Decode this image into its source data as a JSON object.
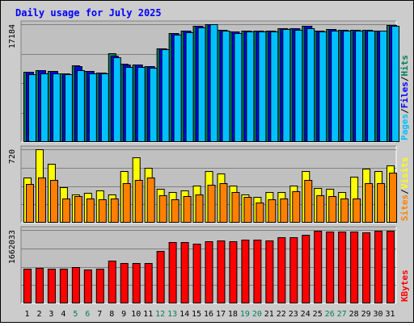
{
  "chart_data": {
    "type": "bar",
    "title": "Daily usage for July 2025",
    "categories": [
      "1",
      "2",
      "3",
      "4",
      "5",
      "6",
      "7",
      "8",
      "9",
      "10",
      "11",
      "12",
      "13",
      "14",
      "15",
      "16",
      "17",
      "18",
      "19",
      "20",
      "21",
      "22",
      "23",
      "24",
      "25",
      "26",
      "27",
      "28",
      "29",
      "30",
      "31"
    ],
    "weekend_days": [
      "5",
      "6",
      "12",
      "13",
      "19",
      "20",
      "26",
      "27"
    ],
    "panels": [
      {
        "id": "pfh",
        "ymax_label": "17184",
        "ylim": [
          0,
          17184
        ],
        "label_parts": [
          "Pages",
          "/",
          "Files",
          "/",
          "Hits"
        ],
        "series": [
          {
            "name": "Hits",
            "color": "#00805c",
            "values": [
              10200,
              10500,
              10300,
              10000,
              11200,
              10400,
              10100,
              12900,
              11400,
              11300,
              11100,
              13700,
              15900,
              16200,
              16900,
              17184,
              16400,
              16100,
              16300,
              16300,
              16300,
              16600,
              16600,
              16900,
              16300,
              16500,
              16400,
              16400,
              16400,
              16300,
              17100
            ]
          },
          {
            "name": "Files",
            "color": "#0000ff",
            "values": [
              10200,
              10500,
              10300,
              10000,
              11100,
              10400,
              10100,
              12600,
              11300,
              11300,
              11100,
              13700,
              15900,
              16200,
              16900,
              17184,
              16400,
              16100,
              16300,
              16300,
              16300,
              16600,
              16600,
              16900,
              16300,
              16500,
              16400,
              16400,
              16400,
              16300,
              17100
            ]
          },
          {
            "name": "Pages",
            "color": "#00c0ff",
            "values": [
              9900,
              10000,
              10000,
              9900,
              10500,
              10000,
              10000,
              12400,
              11000,
              11000,
              10800,
              13500,
              15700,
              16000,
              16700,
              17184,
              16200,
              15900,
              16100,
              16100,
              16100,
              16500,
              16400,
              16600,
              16100,
              16300,
              16200,
              16300,
              16300,
              16200,
              17000
            ]
          }
        ]
      },
      {
        "id": "sv",
        "ymax_label": "720",
        "ylim": [
          0,
          720
        ],
        "label_parts": [
          "Sites",
          "/",
          "Visits"
        ],
        "series": [
          {
            "name": "Visits",
            "color": "#ffff00",
            "values": [
              440,
              720,
              580,
              350,
              280,
              290,
              320,
              280,
              510,
              640,
              540,
              330,
              300,
              320,
              360,
              510,
              480,
              360,
              280,
              250,
              300,
              300,
              360,
              510,
              340,
              330,
              300,
              450,
              530,
              510,
              560
            ]
          },
          {
            "name": "Sites",
            "color": "#ff8000",
            "values": [
              380,
              440,
              420,
              240,
              260,
              240,
              230,
              240,
              390,
              420,
              440,
              270,
              230,
              260,
              280,
              370,
              390,
              300,
              250,
              200,
              230,
              240,
              310,
              420,
              270,
              260,
              240,
              240,
              390,
              390,
              490
            ]
          }
        ]
      },
      {
        "id": "kb",
        "ymax_label": "1662033",
        "ylim": [
          0,
          1662033
        ],
        "label_parts": [
          "KBytes"
        ],
        "series": [
          {
            "name": "KBytes",
            "color": "#ff0000",
            "values": [
              780000,
              800000,
              780000,
              780000,
              820000,
              760000,
              780000,
              970000,
              910000,
              910000,
              910000,
              1180000,
              1380000,
              1380000,
              1350000,
              1400000,
              1430000,
              1400000,
              1440000,
              1440000,
              1430000,
              1500000,
              1490000,
              1550000,
              1650000,
              1630000,
              1630000,
              1630000,
              1600000,
              1640000,
              1640000
            ]
          }
        ]
      }
    ]
  },
  "colors": {
    "background": "#cccccc",
    "panel": "#c0c0c0",
    "title": "#0000ff",
    "weekday_label": "#000000",
    "weekend_label": "#00805c"
  }
}
